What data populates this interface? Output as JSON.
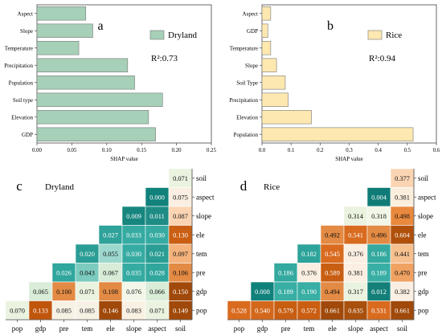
{
  "chart_data": [
    {
      "type": "bar",
      "orientation": "horizontal",
      "panel_letter": "a",
      "legend_label": "Dryland",
      "legend_placement": "top-right",
      "annotation": "R²:0.73",
      "xlabel": "SHAP value",
      "xlim": [
        0,
        0.25
      ],
      "xticks": [
        "0.00",
        "0.05",
        "0.10",
        "0.15",
        "0.20",
        "0.25"
      ],
      "categories": [
        "Aspect",
        "Slope",
        "Temperature",
        "Precipitation",
        "Population",
        "Soil type",
        "Elevation",
        "GDP"
      ],
      "values": [
        0.07,
        0.08,
        0.06,
        0.13,
        0.14,
        0.18,
        0.16,
        0.17
      ],
      "color": "#a6d0b8"
    },
    {
      "type": "bar",
      "orientation": "horizontal",
      "panel_letter": "b",
      "legend_label": "Rice",
      "legend_placement": "top-right",
      "annotation": "R²:0.94",
      "xlabel": "SHAP value",
      "xlim": [
        0,
        0.6
      ],
      "xticks": [
        "0.0",
        "0.1",
        "0.2",
        "0.3",
        "0.4",
        "0.5",
        "0.6"
      ],
      "categories": [
        "Aspect",
        "GDP",
        "Temperature",
        "Slope",
        "Soil Type",
        "Precipitation",
        "Elevation",
        "Population"
      ],
      "values": [
        0.03,
        0.02,
        0.03,
        0.05,
        0.08,
        0.09,
        0.17,
        0.52
      ],
      "color": "#fde8b0"
    },
    {
      "type": "heatmap",
      "panel_letter": "c",
      "title": "Dryland",
      "columns": [
        "pop",
        "gdp",
        "pre",
        "tem",
        "ele",
        "slope",
        "aspect",
        "soil"
      ],
      "rows": [
        "soil",
        "aspect",
        "slope",
        "ele",
        "tem",
        "pre",
        "gdp",
        "pop"
      ],
      "values": [
        [
          "",
          "",
          "",
          "",
          "",
          "",
          "",
          "0.071"
        ],
        [
          "",
          "",
          "",
          "",
          "",
          "",
          "0.000",
          "0.075"
        ],
        [
          "",
          "",
          "",
          "",
          "",
          "0.009",
          "0.011",
          "0.087"
        ],
        [
          "",
          "",
          "",
          "",
          "0.027",
          "0.033",
          "0.030",
          "0.130"
        ],
        [
          "",
          "",
          "",
          "0.020",
          "0.055",
          "0.030",
          "0.021",
          "0.097"
        ],
        [
          "",
          "",
          "0.026",
          "0.043",
          "0.067",
          "0.035",
          "0.028",
          "0.106"
        ],
        [
          "",
          "0.065",
          "0.100",
          "0.071",
          "0.108",
          "0.076",
          "0.066",
          "0.150"
        ],
        [
          "0.070",
          "0.133",
          "0.085",
          "0.085",
          "0.146",
          "0.083",
          "0.071",
          "0.149"
        ]
      ],
      "colors": [
        [
          "",
          "",
          "",
          "",
          "",
          "",
          "",
          "#eaf3df"
        ],
        [
          "",
          "",
          "",
          "",
          "",
          "",
          "#11817b",
          "#faefe2"
        ],
        [
          "",
          "",
          "",
          "",
          "",
          "#16867f",
          "#1e8c85",
          "#fbd5b3"
        ],
        [
          "",
          "",
          "",
          "",
          "#2fa29a",
          "#36aba2",
          "#36aba2",
          "#ca5e12"
        ],
        [
          "",
          "",
          "",
          "#2a9d94",
          "#9cd8cd",
          "#36aba2",
          "#2a9d94",
          "#f4b27c"
        ],
        [
          "",
          "",
          "#30a69d",
          "#7ccbbf",
          "#d8ecd8",
          "#36aba2",
          "#30a69d",
          "#e38a44"
        ],
        [
          "",
          "#d8ecd8",
          "#e38a44",
          "#eaf3df",
          "#e38a44",
          "#f3f7ea",
          "#d8ecd8",
          "#a0490a"
        ],
        [
          "#eaf3df",
          "#c0550c",
          "#f7f1e5",
          "#f7f1e5",
          "#a0490a",
          "#f9f2e4",
          "#eaf3df",
          "#a0490a"
        ]
      ]
    },
    {
      "type": "heatmap",
      "panel_letter": "d",
      "title": "Rice",
      "columns": [
        "pop",
        "gdp",
        "pre",
        "tem",
        "ele",
        "slope",
        "aspect",
        "soil"
      ],
      "rows": [
        "soil",
        "aspect",
        "slope",
        "ele",
        "tem",
        "pre",
        "gdp",
        "pop"
      ],
      "values": [
        [
          "",
          "",
          "",
          "",
          "",
          "",
          "",
          "0.377"
        ],
        [
          "",
          "",
          "",
          "",
          "",
          "",
          "0.004",
          "0.381"
        ],
        [
          "",
          "",
          "",
          "",
          "",
          "0.314",
          "0.318",
          "0.498"
        ],
        [
          "",
          "",
          "",
          "",
          "0.492",
          "0.541",
          "0.496",
          "0.604"
        ],
        [
          "",
          "",
          "",
          "0.182",
          "0.545",
          "0.376",
          "0.186",
          "0.441"
        ],
        [
          "",
          "",
          "0.186",
          "0.376",
          "0.589",
          "0.381",
          "0.189",
          "0.470"
        ],
        [
          "",
          "0.008",
          "0.189",
          "0.190",
          "0.494",
          "0.317",
          "0.012",
          "0.382"
        ],
        [
          "0.528",
          "0.540",
          "0.579",
          "0.572",
          "0.661",
          "0.635",
          "0.531",
          "0.661"
        ]
      ],
      "colors": [
        [
          "",
          "",
          "",
          "",
          "",
          "",
          "",
          "#fbd5b3"
        ],
        [
          "",
          "",
          "",
          "",
          "",
          "",
          "#0f7b76",
          "#fbeedd"
        ],
        [
          "",
          "",
          "",
          "",
          "",
          "#eaf3df",
          "#f1f6e8",
          "#e9893d"
        ],
        [
          "",
          "",
          "",
          "",
          "#e38a44",
          "#d96b1f",
          "#e38a44",
          "#b0500b"
        ],
        [
          "",
          "",
          "",
          "#2ea39a",
          "#d96b1f",
          "#faefe2",
          "#34a99f",
          "#f6c08f"
        ],
        [
          "",
          "",
          "#34a99f",
          "#faefe2",
          "#c85e12",
          "#faefe2",
          "#38aea4",
          "#f0a262"
        ],
        [
          "",
          "#11817b",
          "#38aea4",
          "#38aea4",
          "#e38a44",
          "#eaf3df",
          "#147f79",
          "#faefe2"
        ],
        [
          "#d96b1f",
          "#d3681c",
          "#c85e12",
          "#ca5e12",
          "#a0490a",
          "#a8500c",
          "#d96b1f",
          "#a0490a"
        ]
      ]
    }
  ]
}
